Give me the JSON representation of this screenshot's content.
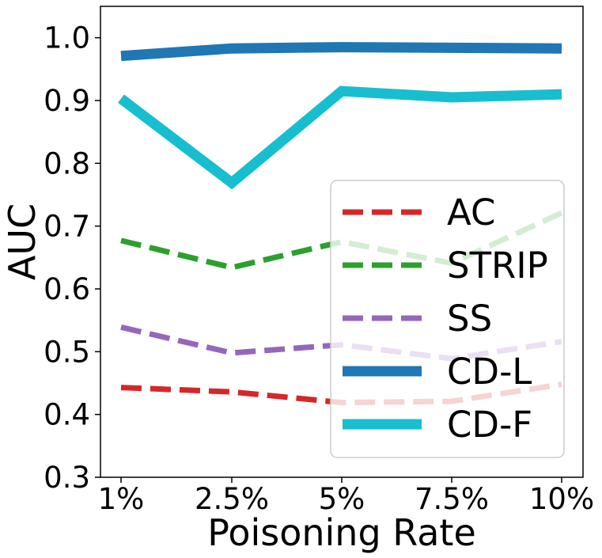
{
  "chart_data": {
    "type": "line",
    "categories": [
      "1%",
      "2.5%",
      "5%",
      "7.5%",
      "10%"
    ],
    "xlabel": "Poisoning Rate",
    "ylabel": "AUC",
    "ylim": [
      0.3,
      1.05
    ],
    "yticks": [
      "0.3",
      "0.4",
      "0.5",
      "0.6",
      "0.7",
      "0.8",
      "0.9",
      "1.0"
    ],
    "grid": false,
    "legend_position": "lower-right",
    "series": [
      {
        "name": "AC",
        "values": [
          0.443,
          0.436,
          0.419,
          0.421,
          0.448
        ],
        "color": "#d62728",
        "style": "dashed"
      },
      {
        "name": "STRIP",
        "values": [
          0.677,
          0.634,
          0.675,
          0.641,
          0.721
        ],
        "color": "#2ca02c",
        "style": "dashed"
      },
      {
        "name": "SS",
        "values": [
          0.539,
          0.498,
          0.511,
          0.489,
          0.516
        ],
        "color": "#9467bd",
        "style": "dashed"
      },
      {
        "name": "CD-L",
        "values": [
          0.971,
          0.983,
          0.985,
          0.984,
          0.983
        ],
        "color": "#1f77b4",
        "style": "solid"
      },
      {
        "name": "CD-F",
        "values": [
          0.903,
          0.769,
          0.915,
          0.905,
          0.91
        ],
        "color": "#17becf",
        "style": "solid"
      }
    ]
  }
}
